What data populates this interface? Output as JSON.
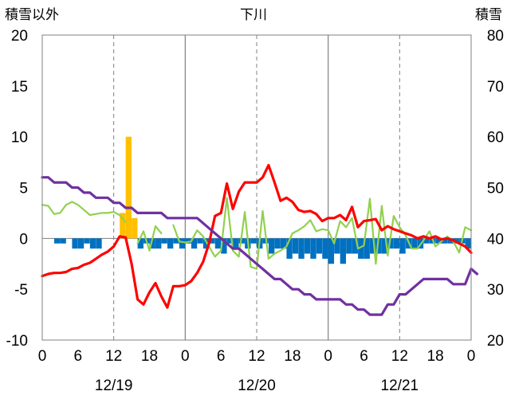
{
  "chart_data": {
    "type": "bar+line",
    "title": "下川",
    "left_axis_title": "積雪以外",
    "right_axis_title": "積雪",
    "y_left": {
      "min": -10,
      "max": 20,
      "ticks": [
        20,
        15,
        10,
        5,
        0,
        -5,
        -10
      ]
    },
    "y_right": {
      "min": 20,
      "max": 80,
      "ticks": [
        80,
        70,
        60,
        50,
        40,
        30,
        20
      ]
    },
    "x_hours": {
      "min": 0,
      "max": 72
    },
    "x_tick_labels": [
      "0",
      "6",
      "12",
      "18",
      "0",
      "6",
      "12",
      "18",
      "0",
      "6",
      "12",
      "18",
      "0"
    ],
    "date_labels": [
      "12/19",
      "12/20",
      "12/21"
    ],
    "grid": "solid at day boundaries, dashed at 12:00",
    "series": [
      {
        "key": "snowfall",
        "kind": "bar",
        "axis": "left",
        "color": "#FFC000",
        "points": [
          [
            13.5,
            2.5
          ],
          [
            14.5,
            10
          ],
          [
            15.5,
            2
          ]
        ]
      },
      {
        "key": "precipitation",
        "kind": "bar",
        "axis": "left",
        "color": "#0070C0",
        "points": [
          [
            2.5,
            -0.5
          ],
          [
            3.5,
            -0.5
          ],
          [
            5.5,
            -1
          ],
          [
            6.5,
            -1
          ],
          [
            7.5,
            -0.5
          ],
          [
            8.5,
            -1
          ],
          [
            9.5,
            -1
          ],
          [
            16.5,
            -1
          ],
          [
            17.5,
            -0.5
          ],
          [
            18.5,
            -1
          ],
          [
            19.5,
            -1
          ],
          [
            20.5,
            -0.5
          ],
          [
            21.5,
            -1
          ],
          [
            22.5,
            -0.5
          ],
          [
            23.5,
            -1
          ],
          [
            24.5,
            -0.5
          ],
          [
            25.5,
            -1
          ],
          [
            26.5,
            -0.5
          ],
          [
            27.5,
            -1
          ],
          [
            28.5,
            -0.5
          ],
          [
            29.5,
            -1
          ],
          [
            30.5,
            -1.5
          ],
          [
            31.5,
            -0.5
          ],
          [
            32.5,
            -1
          ],
          [
            33.5,
            -0.5
          ],
          [
            34.5,
            -1
          ],
          [
            35.5,
            -0.5
          ],
          [
            36.5,
            -1
          ],
          [
            37.5,
            -0.5
          ],
          [
            38.5,
            -1.5
          ],
          [
            39.5,
            -1
          ],
          [
            40.5,
            -1
          ],
          [
            41.5,
            -2
          ],
          [
            42.5,
            -1.5
          ],
          [
            43.5,
            -2
          ],
          [
            44.5,
            -1.5
          ],
          [
            45.5,
            -2
          ],
          [
            46.5,
            -1.5
          ],
          [
            47.5,
            -2
          ],
          [
            48.5,
            -2.5
          ],
          [
            49.5,
            -1.5
          ],
          [
            50.5,
            -2.5
          ],
          [
            51.5,
            -1.5
          ],
          [
            52.5,
            -1.5
          ],
          [
            53.5,
            -2
          ],
          [
            54.5,
            -2
          ],
          [
            55.5,
            -1.5
          ],
          [
            56.5,
            -1.5
          ],
          [
            57.5,
            -1.5
          ],
          [
            58.5,
            -1
          ],
          [
            59.5,
            -1
          ],
          [
            60.5,
            -1.5
          ],
          [
            61.5,
            -1
          ],
          [
            62.5,
            -1
          ],
          [
            63.5,
            -1
          ],
          [
            64.5,
            -0.5
          ],
          [
            65.5,
            -0.5
          ],
          [
            66.5,
            -0.5
          ],
          [
            67.5,
            -0.5
          ],
          [
            68.5,
            -0.5
          ],
          [
            69.5,
            -0.5
          ],
          [
            70.5,
            -0.5
          ],
          [
            71.5,
            -1
          ]
        ]
      },
      {
        "key": "green",
        "kind": "line",
        "axis": "left",
        "color": "#92D050",
        "segments": [
          [
            [
              0,
              3.3
            ],
            [
              1,
              3.2
            ],
            [
              2,
              2.4
            ],
            [
              3,
              2.5
            ],
            [
              4,
              3.3
            ],
            [
              5,
              3.6
            ],
            [
              6,
              3.3
            ],
            [
              7,
              2.8
            ],
            [
              8,
              2.3
            ],
            [
              9,
              2.4
            ],
            [
              10,
              2.5
            ],
            [
              11,
              2.5
            ],
            [
              12,
              2.6
            ],
            [
              13,
              2.3
            ],
            [
              14,
              1.6
            ]
          ],
          [
            [
              16,
              -0.5
            ],
            [
              17,
              0.7
            ],
            [
              18,
              -1.2
            ],
            [
              19,
              1.2
            ],
            [
              20,
              0.5
            ]
          ],
          [
            [
              22,
              1.3
            ],
            [
              23,
              -0.3
            ],
            [
              24,
              -0.4
            ],
            [
              25,
              -0.3
            ],
            [
              26,
              0.8
            ],
            [
              27,
              0.2
            ],
            [
              28,
              -0.8
            ],
            [
              29,
              -1.8
            ],
            [
              30,
              -1.2
            ],
            [
              31,
              4.0
            ],
            [
              32,
              -1.2
            ],
            [
              33,
              -1.8
            ],
            [
              34,
              2.6
            ],
            [
              35,
              -2.8
            ],
            [
              36,
              -3.0
            ],
            [
              37,
              2.7
            ],
            [
              38,
              -2.0
            ],
            [
              39,
              -1.5
            ],
            [
              40,
              -1.2
            ],
            [
              41,
              -0.8
            ],
            [
              42,
              0.5
            ],
            [
              43,
              0.8
            ],
            [
              44,
              1.2
            ],
            [
              45,
              1.8
            ],
            [
              46,
              0.7
            ],
            [
              47,
              0.9
            ],
            [
              48,
              0.8
            ],
            [
              49,
              -0.5
            ],
            [
              50,
              1.7
            ],
            [
              51,
              1.1
            ],
            [
              52,
              2.0
            ],
            [
              53,
              -1.0
            ],
            [
              54,
              -0.7
            ],
            [
              55,
              3.9
            ],
            [
              56,
              -2.5
            ],
            [
              57,
              3.2
            ],
            [
              58,
              -1.7
            ],
            [
              59,
              2.2
            ],
            [
              60,
              1.1
            ],
            [
              61,
              0.3
            ],
            [
              62,
              -1.0
            ],
            [
              63,
              -1.0
            ],
            [
              64,
              -0.2
            ],
            [
              65,
              0.7
            ],
            [
              66,
              -0.8
            ],
            [
              67,
              -0.3
            ],
            [
              68,
              0.2
            ],
            [
              69,
              -0.3
            ],
            [
              70,
              -1.4
            ],
            [
              71,
              1.1
            ],
            [
              72,
              0.8
            ]
          ]
        ]
      },
      {
        "key": "red",
        "kind": "line",
        "axis": "left",
        "color": "#FF0000",
        "segments": [
          [
            [
              0,
              -3.7
            ],
            [
              1,
              -3.5
            ],
            [
              2,
              -3.4
            ],
            [
              3,
              -3.4
            ],
            [
              4,
              -3.3
            ],
            [
              5,
              -3.0
            ],
            [
              6,
              -2.9
            ],
            [
              7,
              -2.6
            ],
            [
              8,
              -2.4
            ],
            [
              9,
              -2.0
            ],
            [
              10,
              -1.6
            ],
            [
              11,
              -1.3
            ],
            [
              12,
              -0.8
            ],
            [
              13,
              0.2
            ],
            [
              14,
              0.1
            ],
            [
              15,
              -2.5
            ],
            [
              16,
              -6.0
            ],
            [
              17,
              -6.5
            ],
            [
              18,
              -5.3
            ],
            [
              19,
              -4.4
            ],
            [
              20,
              -5.7
            ],
            [
              21,
              -6.8
            ],
            [
              22,
              -4.7
            ],
            [
              23,
              -4.7
            ],
            [
              24,
              -4.6
            ],
            [
              25,
              -4.2
            ],
            [
              26,
              -3.4
            ],
            [
              27,
              -2.3
            ],
            [
              28,
              -0.5
            ],
            [
              29,
              2.2
            ],
            [
              30,
              2.5
            ],
            [
              31,
              5.4
            ],
            [
              32,
              2.9
            ],
            [
              33,
              4.6
            ],
            [
              34,
              5.5
            ],
            [
              35,
              5.5
            ],
            [
              36,
              5.5
            ],
            [
              37,
              6.0
            ],
            [
              38,
              7.2
            ],
            [
              39,
              5.5
            ],
            [
              40,
              3.7
            ],
            [
              41,
              4.0
            ],
            [
              42,
              3.6
            ],
            [
              43,
              2.8
            ],
            [
              44,
              2.6
            ],
            [
              45,
              2.7
            ],
            [
              46,
              2.4
            ],
            [
              47,
              1.7
            ],
            [
              48,
              2.0
            ],
            [
              49,
              2.0
            ],
            [
              50,
              2.3
            ],
            [
              51,
              1.8
            ],
            [
              52,
              3.1
            ],
            [
              53,
              1.1
            ],
            [
              54,
              1.7
            ],
            [
              55,
              1.8
            ],
            [
              56,
              1.9
            ],
            [
              57,
              0.8
            ],
            [
              58,
              1.2
            ],
            [
              59,
              0.9
            ],
            [
              60,
              0.7
            ],
            [
              61,
              0.5
            ],
            [
              62,
              0.3
            ],
            [
              63,
              0.0
            ],
            [
              64,
              0.2
            ],
            [
              65,
              0.0
            ],
            [
              66,
              0.2
            ],
            [
              67,
              -0.1
            ],
            [
              68,
              0.0
            ],
            [
              69,
              -0.2
            ],
            [
              70,
              -0.5
            ],
            [
              71,
              -0.8
            ],
            [
              72,
              -1.4
            ]
          ]
        ]
      },
      {
        "key": "purple",
        "kind": "line",
        "axis": "right",
        "color": "#7030A0",
        "segments": [
          [
            [
              0,
              52
            ],
            [
              1,
              52
            ],
            [
              2,
              51
            ],
            [
              3,
              51
            ],
            [
              4,
              51
            ],
            [
              5,
              50
            ],
            [
              6,
              50
            ],
            [
              7,
              49
            ],
            [
              8,
              49
            ],
            [
              9,
              48
            ],
            [
              10,
              48
            ],
            [
              11,
              48
            ],
            [
              12,
              47
            ],
            [
              13,
              47
            ],
            [
              14,
              46
            ],
            [
              15,
              46
            ],
            [
              16,
              45
            ],
            [
              17,
              45
            ],
            [
              18,
              45
            ],
            [
              19,
              45
            ],
            [
              20,
              45
            ],
            [
              21,
              44
            ],
            [
              22,
              44
            ],
            [
              23,
              44
            ],
            [
              24,
              44
            ],
            [
              25,
              44
            ],
            [
              26,
              44
            ],
            [
              27,
              43
            ],
            [
              28,
              42
            ],
            [
              29,
              41
            ],
            [
              30,
              40
            ],
            [
              31,
              39
            ],
            [
              32,
              38
            ],
            [
              33,
              38
            ],
            [
              34,
              37
            ],
            [
              35,
              36
            ],
            [
              36,
              35
            ],
            [
              37,
              34
            ],
            [
              38,
              33
            ],
            [
              39,
              32
            ],
            [
              40,
              32
            ],
            [
              41,
              31
            ],
            [
              42,
              30
            ],
            [
              43,
              30
            ],
            [
              44,
              29
            ],
            [
              45,
              29
            ],
            [
              46,
              28
            ],
            [
              47,
              28
            ],
            [
              48,
              28
            ],
            [
              49,
              28
            ],
            [
              50,
              28
            ],
            [
              51,
              27
            ],
            [
              52,
              27
            ],
            [
              53,
              26
            ],
            [
              54,
              26
            ],
            [
              55,
              25
            ],
            [
              56,
              25
            ],
            [
              57,
              25
            ],
            [
              58,
              27
            ],
            [
              59,
              27
            ],
            [
              60,
              29
            ],
            [
              61,
              29
            ],
            [
              62,
              30
            ],
            [
              63,
              31
            ],
            [
              64,
              32
            ],
            [
              65,
              32
            ],
            [
              66,
              32
            ],
            [
              67,
              32
            ],
            [
              68,
              32
            ],
            [
              69,
              31
            ],
            [
              70,
              31
            ],
            [
              71,
              31
            ],
            [
              72,
              34
            ],
            [
              73,
              33
            ]
          ]
        ]
      }
    ]
  }
}
